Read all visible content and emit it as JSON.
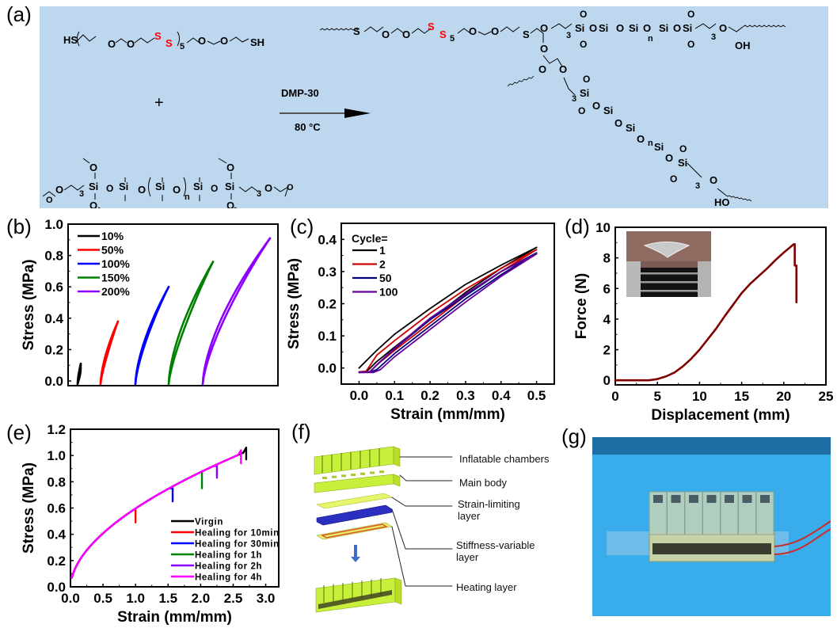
{
  "panels": {
    "a": {
      "label": "(a)",
      "reactant1_left": "HS",
      "reactant1_right": "SH",
      "repeat_5": "5",
      "disulfide_s": "S",
      "plus": "+",
      "reagent": "DMP-30",
      "condition": "80 °C",
      "si": "Si",
      "o": "O",
      "n": "n",
      "three": "3",
      "oh": "OH",
      "ho": "HO",
      "s": "S"
    },
    "b": {
      "label": "(b)"
    },
    "c": {
      "label": "(c)"
    },
    "d": {
      "label": "(d)"
    },
    "e": {
      "label": "(e)"
    },
    "f": {
      "label": "(f)",
      "layers": [
        "Inflatable chambers",
        "Main body",
        "Strain-limiting\nlayer",
        "Stiffness-variable\nlayer",
        "Heating layer"
      ]
    },
    "g": {
      "label": "(g)"
    }
  },
  "colors": {
    "scheme_bg": "#BDD7EE",
    "disulfide": "#FF0000",
    "photo_bg": "#3BAAE8"
  },
  "chart_data": [
    {
      "id": "b",
      "type": "line",
      "title": "",
      "xlabel": "",
      "ylabel": "Stress (MPa)",
      "ylim": [
        -0.03,
        1.0
      ],
      "yticks": [
        "0.0",
        "0.2",
        "0.4",
        "0.6",
        "0.8",
        "1.0"
      ],
      "xticks_shown": false,
      "legend_title": "",
      "legend_position": "top-left",
      "series": [
        {
          "name": "10%",
          "color": "#000000",
          "x": [
            0.0,
            0.1
          ],
          "y": [
            -0.02,
            0.11
          ]
        },
        {
          "name": "50%",
          "color": "#FF0000",
          "x": [
            0.0,
            0.5
          ],
          "y": [
            -0.02,
            0.38
          ]
        },
        {
          "name": "100%",
          "color": "#0000FF",
          "x": [
            0.0,
            1.0
          ],
          "y": [
            -0.02,
            0.6
          ]
        },
        {
          "name": "150%",
          "color": "#008000",
          "x": [
            0.0,
            1.5
          ],
          "y": [
            -0.02,
            0.76
          ]
        },
        {
          "name": "200%",
          "color": "#8B00FF",
          "x": [
            0.0,
            2.0
          ],
          "y": [
            -0.02,
            0.91
          ]
        }
      ]
    },
    {
      "id": "c",
      "type": "line",
      "xlabel": "Strain (mm/mm)",
      "ylabel": "Stress (MPa)",
      "xlim": [
        -0.05,
        0.55
      ],
      "ylim": [
        -0.05,
        0.45
      ],
      "xticks": [
        "0.0",
        "0.1",
        "0.2",
        "0.3",
        "0.4",
        "0.5"
      ],
      "yticks": [
        "0.0",
        "0.1",
        "0.2",
        "0.3",
        "0.4"
      ],
      "legend_title": "Cycle=",
      "legend_position": "top-left",
      "series": [
        {
          "name": "1",
          "color": "#000000",
          "load_x": [
            0,
            0.05,
            0.1,
            0.2,
            0.3,
            0.4,
            0.5
          ],
          "load_y": [
            0,
            0.055,
            0.105,
            0.185,
            0.26,
            0.32,
            0.375
          ],
          "unload_x": [
            0.5,
            0.4,
            0.3,
            0.2,
            0.1,
            0.05,
            0.02,
            0
          ],
          "unload_y": [
            0.375,
            0.31,
            0.235,
            0.15,
            0.065,
            0.02,
            -0.012,
            -0.013
          ]
        },
        {
          "name": "2",
          "color": "#CC0000",
          "load_x": [
            0,
            0.02,
            0.05,
            0.1,
            0.2,
            0.3,
            0.4,
            0.5
          ],
          "load_y": [
            -0.012,
            -0.01,
            0.04,
            0.085,
            0.17,
            0.245,
            0.31,
            0.368
          ],
          "unload_x": [
            0.5,
            0.4,
            0.3,
            0.2,
            0.1,
            0.05,
            0.03,
            0
          ],
          "unload_y": [
            0.368,
            0.3,
            0.225,
            0.14,
            0.055,
            0.01,
            -0.012,
            -0.013
          ]
        },
        {
          "name": "50",
          "color": "#000080",
          "load_x": [
            0,
            0.03,
            0.06,
            0.1,
            0.2,
            0.3,
            0.4,
            0.5
          ],
          "load_y": [
            -0.013,
            -0.012,
            0.02,
            0.06,
            0.15,
            0.225,
            0.3,
            0.358
          ],
          "unload_x": [
            0.5,
            0.4,
            0.3,
            0.2,
            0.1,
            0.05,
            0.03,
            0
          ],
          "unload_y": [
            0.358,
            0.29,
            0.215,
            0.13,
            0.045,
            -0.005,
            -0.013,
            -0.014
          ]
        },
        {
          "name": "100",
          "color": "#660099",
          "load_x": [
            0,
            0.03,
            0.06,
            0.1,
            0.2,
            0.3,
            0.4,
            0.5
          ],
          "load_y": [
            -0.013,
            -0.012,
            0.02,
            0.062,
            0.155,
            0.23,
            0.3,
            0.355
          ],
          "unload_x": [
            0.5,
            0.4,
            0.3,
            0.2,
            0.1,
            0.06,
            0.04,
            0
          ],
          "unload_y": [
            0.355,
            0.285,
            0.205,
            0.12,
            0.035,
            -0.005,
            -0.014,
            -0.014
          ]
        }
      ]
    },
    {
      "id": "d",
      "type": "line",
      "xlabel": "Displacement (mm)",
      "ylabel": "Force (N)",
      "xlim": [
        0,
        25
      ],
      "ylim": [
        -0.3,
        10
      ],
      "xticks": [
        "0",
        "5",
        "10",
        "15",
        "20",
        "25"
      ],
      "yticks": [
        "0",
        "2",
        "4",
        "6",
        "8",
        "10"
      ],
      "inset": "photo of puncture test fixture",
      "series": [
        {
          "name": "force",
          "color": "#800000",
          "x": [
            0,
            4,
            5,
            6,
            7,
            8,
            9,
            10,
            11,
            12,
            13,
            14,
            15,
            16,
            17,
            18,
            19,
            20,
            21.2,
            21.3,
            21.3,
            21.5,
            21.5
          ],
          "y": [
            0,
            0,
            0.08,
            0.25,
            0.5,
            0.9,
            1.4,
            2.0,
            2.7,
            3.4,
            4.2,
            4.95,
            5.7,
            6.3,
            6.8,
            7.3,
            7.85,
            8.35,
            8.9,
            8.9,
            7.5,
            7.5,
            5.1
          ]
        }
      ]
    },
    {
      "id": "e",
      "type": "line",
      "xlabel": "Strain (mm/mm)",
      "ylabel": "Stress (MPa)",
      "xlim": [
        0,
        3.2
      ],
      "ylim": [
        0,
        1.2
      ],
      "xticks": [
        "0.0",
        "0.5",
        "1.0",
        "1.5",
        "2.0",
        "2.5",
        "3.0"
      ],
      "yticks": [
        "0.0",
        "0.2",
        "0.4",
        "0.6",
        "0.8",
        "1.0",
        "1.2"
      ],
      "legend_position": "bottom-right",
      "series": [
        {
          "name": "Virgin",
          "color": "#000000",
          "break_x": 2.7,
          "break_y": 1.06,
          "drop_to": 0.97
        },
        {
          "name": "Healing for 10min",
          "color": "#FF0000",
          "break_x": 1.0,
          "break_y": 0.59,
          "drop_to": 0.49
        },
        {
          "name": "Healing for 30min",
          "color": "#0000FF",
          "break_x": 1.57,
          "break_y": 0.75,
          "drop_to": 0.65
        },
        {
          "name": "Healing for 1h",
          "color": "#008000",
          "break_x": 2.02,
          "break_y": 0.88,
          "drop_to": 0.75
        },
        {
          "name": "Healing for 2h",
          "color": "#8B00FF",
          "break_x": 2.25,
          "break_y": 0.92,
          "drop_to": 0.83
        },
        {
          "name": "Healing for 4h",
          "color": "#FF00FF",
          "break_x": 2.62,
          "break_y": 1.04,
          "drop_to": 0.94
        }
      ]
    }
  ]
}
